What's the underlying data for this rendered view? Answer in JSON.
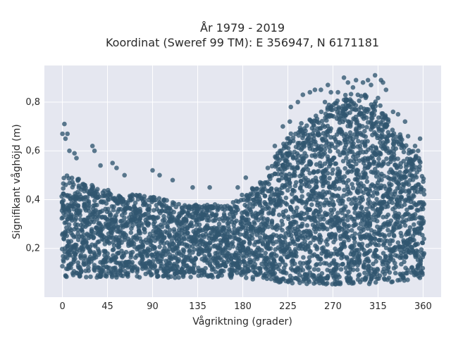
{
  "chart_data": {
    "type": "scatter",
    "title_line1": "År 1979 - 2019",
    "title_line2": "Koordinat (Sweref 99 TM): E 356947, N 6171181",
    "xlabel": "Vågriktning (grader)",
    "ylabel": "Signifikant våghöjd (m)",
    "xlim": [
      -18,
      378
    ],
    "ylim": [
      0.0,
      0.95
    ],
    "x_ticks": [
      0,
      45,
      90,
      135,
      180,
      225,
      270,
      315,
      360
    ],
    "x_tick_labels": [
      "0",
      "45",
      "90",
      "135",
      "180",
      "225",
      "270",
      "315",
      "360"
    ],
    "y_ticks": [
      0.2,
      0.4,
      0.6,
      0.8
    ],
    "y_tick_labels": [
      "0,2",
      "0,4",
      "0,6",
      "0,8"
    ],
    "grid": true,
    "point_color": "#31566f",
    "background_color": "#e5e7f0",
    "envelope": {
      "x": [
        0,
        10,
        20,
        30,
        45,
        60,
        75,
        90,
        105,
        120,
        135,
        150,
        165,
        180,
        195,
        205,
        215,
        225,
        240,
        255,
        270,
        285,
        300,
        315,
        330,
        345,
        360
      ],
      "upper": [
        0.5,
        0.5,
        0.48,
        0.46,
        0.44,
        0.42,
        0.42,
        0.42,
        0.4,
        0.38,
        0.38,
        0.38,
        0.38,
        0.42,
        0.46,
        0.5,
        0.6,
        0.66,
        0.72,
        0.76,
        0.8,
        0.84,
        0.84,
        0.82,
        0.7,
        0.62,
        0.55
      ],
      "lower": [
        0.08,
        0.08,
        0.08,
        0.08,
        0.08,
        0.08,
        0.08,
        0.08,
        0.08,
        0.08,
        0.08,
        0.08,
        0.08,
        0.08,
        0.07,
        0.07,
        0.06,
        0.06,
        0.05,
        0.05,
        0.05,
        0.05,
        0.05,
        0.06,
        0.06,
        0.07,
        0.08
      ]
    },
    "outliers": [
      {
        "x": 0,
        "y": 0.67
      },
      {
        "x": 2,
        "y": 0.71
      },
      {
        "x": 5,
        "y": 0.67
      },
      {
        "x": 3,
        "y": 0.65
      },
      {
        "x": 7,
        "y": 0.6
      },
      {
        "x": 12,
        "y": 0.59
      },
      {
        "x": 14,
        "y": 0.57
      },
      {
        "x": 30,
        "y": 0.62
      },
      {
        "x": 32,
        "y": 0.6
      },
      {
        "x": 38,
        "y": 0.54
      },
      {
        "x": 50,
        "y": 0.55
      },
      {
        "x": 54,
        "y": 0.53
      },
      {
        "x": 62,
        "y": 0.5
      },
      {
        "x": 90,
        "y": 0.52
      },
      {
        "x": 97,
        "y": 0.5
      },
      {
        "x": 110,
        "y": 0.48
      },
      {
        "x": 130,
        "y": 0.45
      },
      {
        "x": 147,
        "y": 0.45
      },
      {
        "x": 175,
        "y": 0.45
      },
      {
        "x": 183,
        "y": 0.49
      },
      {
        "x": 205,
        "y": 0.53
      },
      {
        "x": 212,
        "y": 0.62
      },
      {
        "x": 220,
        "y": 0.7
      },
      {
        "x": 227,
        "y": 0.72
      },
      {
        "x": 228,
        "y": 0.78
      },
      {
        "x": 235,
        "y": 0.8
      },
      {
        "x": 240,
        "y": 0.83
      },
      {
        "x": 247,
        "y": 0.84
      },
      {
        "x": 252,
        "y": 0.85
      },
      {
        "x": 258,
        "y": 0.85
      },
      {
        "x": 262,
        "y": 0.8
      },
      {
        "x": 268,
        "y": 0.84
      },
      {
        "x": 275,
        "y": 0.84
      },
      {
        "x": 281,
        "y": 0.9
      },
      {
        "x": 285,
        "y": 0.88
      },
      {
        "x": 293,
        "y": 0.89
      },
      {
        "x": 300,
        "y": 0.88
      },
      {
        "x": 308,
        "y": 0.87
      },
      {
        "x": 312,
        "y": 0.91
      },
      {
        "x": 318,
        "y": 0.89
      },
      {
        "x": 323,
        "y": 0.85
      },
      {
        "x": 330,
        "y": 0.76
      },
      {
        "x": 335,
        "y": 0.75
      },
      {
        "x": 342,
        "y": 0.72
      },
      {
        "x": 345,
        "y": 0.66
      },
      {
        "x": 352,
        "y": 0.62
      },
      {
        "x": 357,
        "y": 0.65
      },
      {
        "x": 355,
        "y": 0.6
      },
      {
        "x": 265,
        "y": 0.87
      },
      {
        "x": 290,
        "y": 0.86
      },
      {
        "x": 305,
        "y": 0.89
      },
      {
        "x": 320,
        "y": 0.88
      }
    ]
  }
}
